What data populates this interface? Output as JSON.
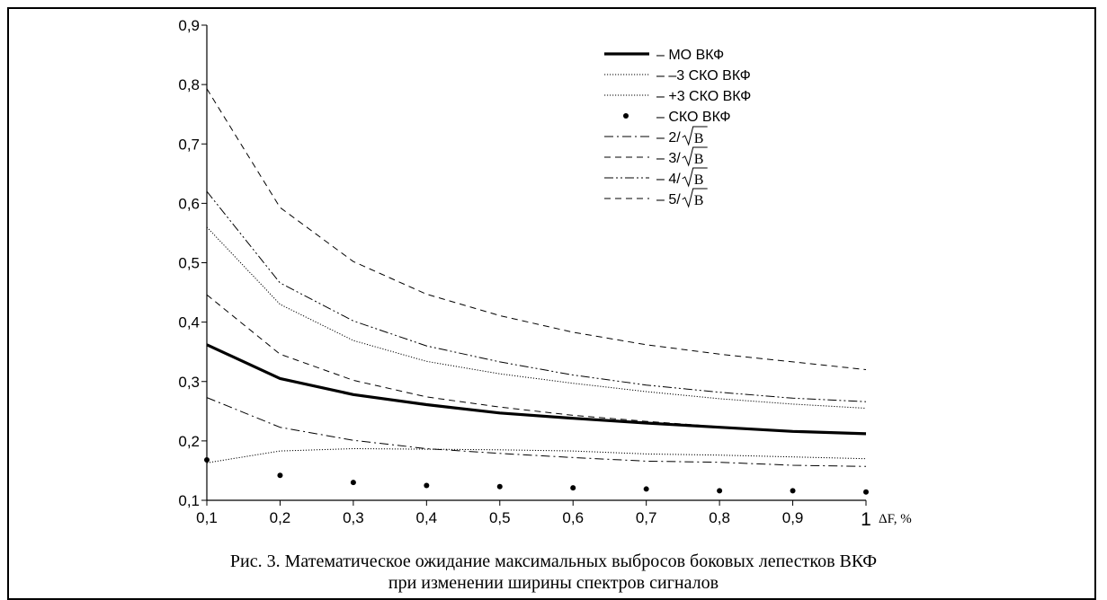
{
  "chart_data": {
    "type": "line",
    "x": [
      0.1,
      0.2,
      0.3,
      0.4,
      0.5,
      0.6,
      0.7,
      0.8,
      0.9,
      1.0
    ],
    "xlim": [
      0.1,
      1.0
    ],
    "ylim": [
      0.1,
      0.9
    ],
    "x_tick_labels": [
      "0,1",
      "0,2",
      "0,3",
      "0,4",
      "0,5",
      "0,6",
      "0,7",
      "0,8",
      "0,9",
      "1"
    ],
    "y_tick_labels": [
      "0,1",
      "0,2",
      "0,3",
      "0,4",
      "0,5",
      "0,6",
      "0,7",
      "0,8",
      "0,9"
    ],
    "xlabel": "ΔF, %",
    "ylabel": "",
    "grid": false,
    "legend_position": "top-right",
    "series": [
      {
        "name": "– МО ВКФ",
        "style": "thick",
        "values": [
          0.362,
          0.305,
          0.278,
          0.261,
          0.247,
          0.238,
          0.23,
          0.223,
          0.216,
          0.212
        ]
      },
      {
        "name": "– –3 СКО ВКФ",
        "style": "dotted",
        "values": [
          0.163,
          0.183,
          0.187,
          0.186,
          0.185,
          0.183,
          0.178,
          0.176,
          0.173,
          0.17
        ]
      },
      {
        "name": "– +3 СКО ВКФ",
        "style": "dotted",
        "values": [
          0.56,
          0.43,
          0.369,
          0.334,
          0.313,
          0.297,
          0.283,
          0.271,
          0.262,
          0.255
        ]
      },
      {
        "name": "– СКО ВКФ",
        "style": "dots",
        "values": [
          0.168,
          0.142,
          0.13,
          0.125,
          0.123,
          0.121,
          0.119,
          0.116,
          0.116,
          0.114
        ]
      },
      {
        "name": "– 2/",
        "radical": "B",
        "style": "dashdot",
        "values": [
          0.273,
          0.223,
          0.201,
          0.187,
          0.179,
          0.172,
          0.166,
          0.164,
          0.159,
          0.157
        ]
      },
      {
        "name": "– 3/",
        "radical": "B",
        "style": "dashed",
        "values": [
          0.446,
          0.346,
          0.302,
          0.274,
          0.257,
          0.243,
          0.233,
          0.224,
          0.217,
          0.212
        ]
      },
      {
        "name": "– 4/",
        "radical": "B",
        "style": "dashdotdot",
        "values": [
          0.62,
          0.466,
          0.402,
          0.36,
          0.333,
          0.311,
          0.294,
          0.282,
          0.272,
          0.266
        ]
      },
      {
        "name": "– 5/",
        "radical": "B",
        "style": "dashed",
        "values": [
          0.793,
          0.593,
          0.502,
          0.447,
          0.411,
          0.383,
          0.362,
          0.346,
          0.333,
          0.32
        ]
      }
    ]
  },
  "caption": {
    "line1": "Рис. 3. Математическое ожидание максимальных выбросов боковых лепестков ВКФ",
    "line2": "при изменении ширины спектров сигналов"
  }
}
